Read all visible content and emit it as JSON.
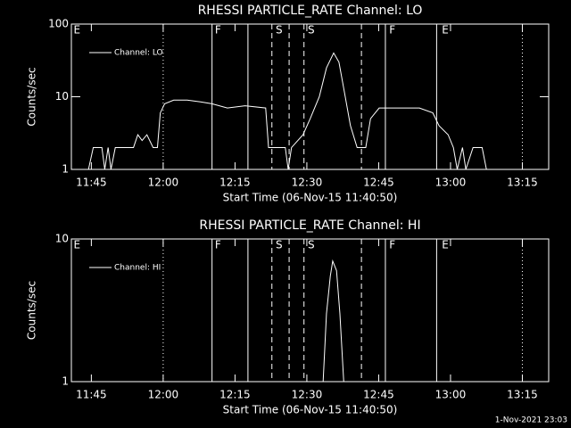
{
  "timestamp": "1-Nov-2021 23:03",
  "chart_data": [
    {
      "type": "line",
      "title": "RHESSI PARTICLE_RATE Channel: LO",
      "x_label": "Start Time (06-Nov-15 11:40:50)",
      "y_label": "Counts/sec",
      "x": [
        704.4,
        705.4,
        707.2,
        707.8,
        708.5,
        709.1,
        710.0,
        713.8,
        714.7,
        715.6,
        716.6,
        717.9,
        718.8,
        719.4,
        720.3,
        722.2,
        725.0,
        727.8,
        730.2,
        733.4,
        737.1,
        741.4,
        742.0,
        745.5,
        746.1,
        746.8,
        749.2,
        750.7,
        752.6,
        754.1,
        755.6,
        756.7,
        757.8,
        759.1,
        760.5,
        762.3,
        763.3,
        765.1,
        769.8,
        773.5,
        776.3,
        777.6,
        779.5,
        780.6,
        781.4,
        782.5,
        783.2,
        784.7,
        786.6,
        787.5
      ],
      "series": [
        {
          "name": "Channel: LO",
          "color": "#ffffff",
          "values": [
            1,
            2,
            2,
            1,
            2,
            1,
            2,
            2,
            3,
            2.5,
            3,
            2,
            2,
            6,
            8,
            9,
            9,
            8.5,
            8,
            7,
            7.5,
            7,
            2,
            2,
            1,
            2,
            3,
            5,
            10,
            25,
            40,
            30,
            12,
            4,
            2,
            2,
            5,
            7,
            7,
            7,
            6,
            4,
            3,
            2,
            1,
            2,
            1,
            2,
            2,
            1
          ]
        }
      ],
      "xlim": [
        700.83,
        800.5
      ],
      "ylim": [
        1,
        100
      ],
      "log_y": true,
      "legend": "upper left",
      "xticks": [
        {
          "value": 705,
          "label": "11:45"
        },
        {
          "value": 720,
          "label": "12:00"
        },
        {
          "value": 735,
          "label": "12:15"
        },
        {
          "value": 750,
          "label": "12:30"
        },
        {
          "value": 765,
          "label": "12:45"
        },
        {
          "value": 780,
          "label": "13:00"
        },
        {
          "value": 795,
          "label": "13:15"
        }
      ],
      "yticks": [
        1,
        10,
        100
      ],
      "vlines": [
        {
          "x": 720,
          "style": "dotted"
        },
        {
          "x": 730.2,
          "style": "solid"
        },
        {
          "x": 737.7,
          "style": "solid"
        },
        {
          "x": 742.7,
          "style": "dashed"
        },
        {
          "x": 746.3,
          "style": "dashed"
        },
        {
          "x": 749.4,
          "style": "dashed"
        },
        {
          "x": 761.4,
          "style": "dashed"
        },
        {
          "x": 766.4,
          "style": "solid"
        },
        {
          "x": 777.1,
          "style": "solid"
        },
        {
          "x": 795,
          "style": "dotted"
        }
      ],
      "flags": [
        {
          "label": "E",
          "x": 701.3
        },
        {
          "label": "F",
          "x": 730.8
        },
        {
          "label": "S",
          "x": 743.5
        },
        {
          "label": "S",
          "x": 750.2
        },
        {
          "label": "F",
          "x": 767.2
        },
        {
          "label": "E",
          "x": 778.2
        }
      ]
    },
    {
      "type": "line",
      "title": "RHESSI PARTICLE_RATE Channel: HI",
      "x_label": "Start Time (06-Nov-15 11:40:50)",
      "y_label": "Counts/sec",
      "x": [
        753.4,
        754.1,
        754.9,
        755.4,
        756.2,
        756.9,
        757.7
      ],
      "series": [
        {
          "name": "Channel: HI",
          "color": "#ffffff",
          "values": [
            1,
            3,
            5.5,
            7,
            6,
            3,
            1
          ]
        }
      ],
      "xlim": [
        700.83,
        800.5
      ],
      "ylim": [
        1,
        10
      ],
      "log_y": true,
      "legend": "upper left",
      "xticks": [
        {
          "value": 705,
          "label": "11:45"
        },
        {
          "value": 720,
          "label": "12:00"
        },
        {
          "value": 735,
          "label": "12:15"
        },
        {
          "value": 750,
          "label": "12:30"
        },
        {
          "value": 765,
          "label": "12:45"
        },
        {
          "value": 780,
          "label": "13:00"
        },
        {
          "value": 795,
          "label": "13:15"
        }
      ],
      "yticks": [
        1,
        10
      ],
      "vlines": [
        {
          "x": 720,
          "style": "dotted"
        },
        {
          "x": 730.2,
          "style": "solid"
        },
        {
          "x": 737.7,
          "style": "solid"
        },
        {
          "x": 742.7,
          "style": "dashed"
        },
        {
          "x": 746.3,
          "style": "dashed"
        },
        {
          "x": 749.4,
          "style": "dashed"
        },
        {
          "x": 761.4,
          "style": "dashed"
        },
        {
          "x": 766.4,
          "style": "solid"
        },
        {
          "x": 777.1,
          "style": "solid"
        },
        {
          "x": 795,
          "style": "dotted"
        }
      ],
      "flags": [
        {
          "label": "E",
          "x": 701.3
        },
        {
          "label": "F",
          "x": 730.8
        },
        {
          "label": "S",
          "x": 743.5
        },
        {
          "label": "S",
          "x": 750.2
        },
        {
          "label": "F",
          "x": 767.2
        },
        {
          "label": "E",
          "x": 778.2
        }
      ]
    }
  ]
}
